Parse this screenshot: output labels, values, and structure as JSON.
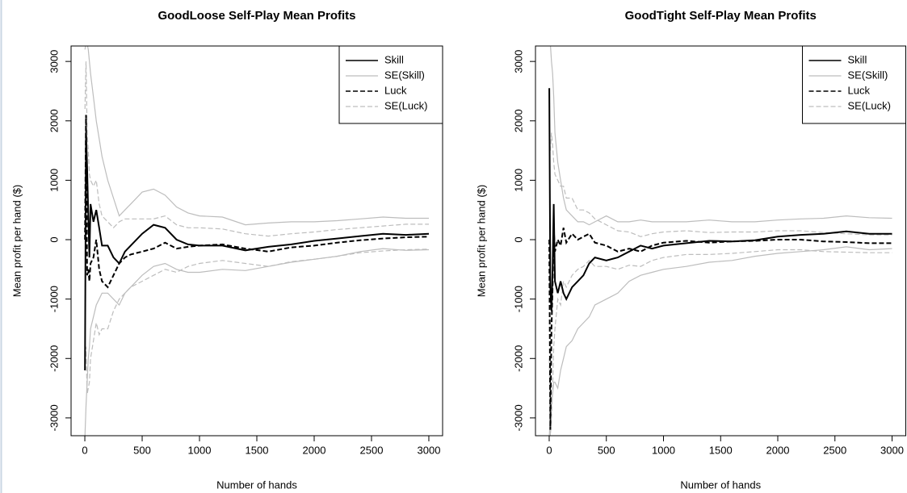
{
  "chart_data": [
    {
      "type": "line",
      "title": "GoodLoose Self-Play Mean Profits",
      "x_label": "Number of hands",
      "y_label": "Mean profit per hand ($)",
      "x": [
        1,
        10,
        20,
        30,
        40,
        50,
        75,
        100,
        125,
        150,
        200,
        250,
        300,
        350,
        400,
        500,
        600,
        700,
        800,
        900,
        1000,
        1200,
        1400,
        1600,
        1800,
        2000,
        2200,
        2400,
        2600,
        2800,
        3000
      ],
      "xlim": [
        -120,
        3120
      ],
      "xticks": [
        0,
        500,
        1000,
        1500,
        2000,
        2500,
        3000
      ],
      "ylim": [
        -3300,
        3260
      ],
      "yticks": [
        -3000,
        -2000,
        -1000,
        0,
        1000,
        2000,
        3000
      ],
      "legend": "topright",
      "series": [
        {
          "name": "Skill",
          "color": "#000000",
          "dash": "solid",
          "values": [
            -2200,
            1800,
            1200,
            400,
            -300,
            600,
            300,
            500,
            200,
            -100,
            -100,
            -300,
            -400,
            -200,
            -100,
            100,
            250,
            200,
            0,
            -80,
            -100,
            -100,
            -180,
            -120,
            -80,
            -20,
            20,
            60,
            100,
            80,
            100
          ]
        },
        {
          "name": "SE(Skill)",
          "color": "#bdbdbd",
          "dash": "solid",
          "upper": [
            3200,
            3300,
            3300,
            3200,
            3000,
            2800,
            2400,
            2000,
            1700,
            1400,
            1000,
            700,
            400,
            500,
            600,
            800,
            850,
            750,
            550,
            450,
            400,
            380,
            250,
            280,
            300,
            300,
            320,
            350,
            380,
            360,
            360
          ],
          "lower": [
            -3300,
            -2800,
            -2400,
            -2000,
            -1800,
            -1500,
            -1300,
            -1100,
            -1000,
            -900,
            -900,
            -1000,
            -1100,
            -900,
            -800,
            -600,
            -450,
            -400,
            -500,
            -550,
            -550,
            -500,
            -520,
            -450,
            -380,
            -330,
            -280,
            -200,
            -150,
            -180,
            -170
          ]
        },
        {
          "name": "Luck",
          "color": "#000000",
          "dash": "dashed",
          "values": [
            0,
            2100,
            -600,
            -500,
            -700,
            -400,
            -300,
            0,
            -500,
            -700,
            -800,
            -600,
            -400,
            -300,
            -250,
            -200,
            -150,
            -50,
            -150,
            -120,
            -100,
            -80,
            -150,
            -200,
            -130,
            -100,
            -50,
            -10,
            20,
            40,
            50
          ]
        },
        {
          "name": "SE(Luck)",
          "color": "#bdbdbd",
          "dash": "dashed",
          "upper": [
            2200,
            3000,
            1800,
            1500,
            1100,
            1000,
            900,
            1000,
            600,
            400,
            300,
            200,
            300,
            350,
            350,
            350,
            350,
            400,
            250,
            200,
            200,
            180,
            100,
            60,
            100,
            130,
            170,
            200,
            230,
            260,
            260
          ],
          "lower": [
            -2200,
            -1800,
            -2600,
            -2500,
            -2400,
            -2000,
            -1700,
            -1400,
            -1600,
            -1500,
            -1500,
            -1200,
            -1000,
            -900,
            -800,
            -700,
            -600,
            -500,
            -550,
            -450,
            -400,
            -350,
            -400,
            -450,
            -370,
            -330,
            -280,
            -220,
            -190,
            -170,
            -160
          ]
        }
      ]
    },
    {
      "type": "line",
      "title": "GoodTight Self-Play Mean Profits",
      "x_label": "Number of hands",
      "y_label": "Mean profit per hand ($)",
      "x": [
        1,
        10,
        20,
        30,
        40,
        50,
        75,
        100,
        125,
        150,
        200,
        250,
        300,
        350,
        400,
        500,
        600,
        700,
        800,
        900,
        1000,
        1200,
        1400,
        1600,
        1800,
        2000,
        2200,
        2400,
        2600,
        2800,
        3000
      ],
      "xlim": [
        -120,
        3120
      ],
      "xticks": [
        0,
        500,
        1000,
        1500,
        2000,
        2500,
        3000
      ],
      "ylim": [
        -3300,
        3260
      ],
      "yticks": [
        -3000,
        -2000,
        -1000,
        0,
        1000,
        2000,
        3000
      ],
      "legend": "topright",
      "series": [
        {
          "name": "Skill",
          "color": "#000000",
          "dash": "solid",
          "values": [
            2550,
            -800,
            -1200,
            -500,
            600,
            -700,
            -900,
            -700,
            -900,
            -1000,
            -800,
            -700,
            -600,
            -400,
            -300,
            -350,
            -300,
            -200,
            -100,
            -150,
            -100,
            -60,
            -20,
            -30,
            -10,
            50,
            80,
            100,
            140,
            100,
            100
          ]
        },
        {
          "name": "SE(Skill)",
          "color": "#bdbdbd",
          "dash": "solid",
          "upper": [
            3300,
            3300,
            3000,
            2800,
            2400,
            1800,
            1300,
            1000,
            700,
            500,
            400,
            300,
            300,
            250,
            300,
            400,
            300,
            300,
            330,
            300,
            300,
            300,
            330,
            300,
            300,
            330,
            350,
            360,
            400,
            370,
            360
          ],
          "lower": [
            -3300,
            -3000,
            -2800,
            -2600,
            -2400,
            -2400,
            -2500,
            -2200,
            -2000,
            -1800,
            -1700,
            -1500,
            -1400,
            -1300,
            -1100,
            -1000,
            -900,
            -700,
            -600,
            -550,
            -500,
            -450,
            -380,
            -350,
            -280,
            -230,
            -200,
            -170,
            -120,
            -170,
            -150
          ]
        },
        {
          "name": "Luck",
          "color": "#000000",
          "dash": "dashed",
          "values": [
            0,
            -3200,
            -1500,
            -800,
            200,
            -200,
            0,
            -100,
            200,
            -50,
            100,
            0,
            50,
            100,
            -50,
            -100,
            -200,
            -150,
            -200,
            -100,
            -50,
            -20,
            -50,
            -30,
            -20,
            0,
            0,
            -30,
            -40,
            -60,
            -60
          ]
        },
        {
          "name": "SE(Luck)",
          "color": "#bdbdbd",
          "dash": "dashed",
          "upper": [
            2000,
            1500,
            1800,
            1600,
            1300,
            1100,
            1000,
            900,
            900,
            700,
            700,
            500,
            500,
            450,
            350,
            250,
            150,
            130,
            50,
            100,
            130,
            150,
            120,
            130,
            130,
            150,
            150,
            120,
            100,
            80,
            80
          ],
          "lower": [
            -2000,
            -3300,
            -3000,
            -2500,
            -1800,
            -1500,
            -1000,
            -1100,
            -700,
            -800,
            -600,
            -500,
            -450,
            -350,
            -450,
            -450,
            -500,
            -430,
            -450,
            -350,
            -300,
            -250,
            -250,
            -230,
            -200,
            -170,
            -170,
            -200,
            -210,
            -220,
            -220
          ]
        }
      ]
    }
  ]
}
